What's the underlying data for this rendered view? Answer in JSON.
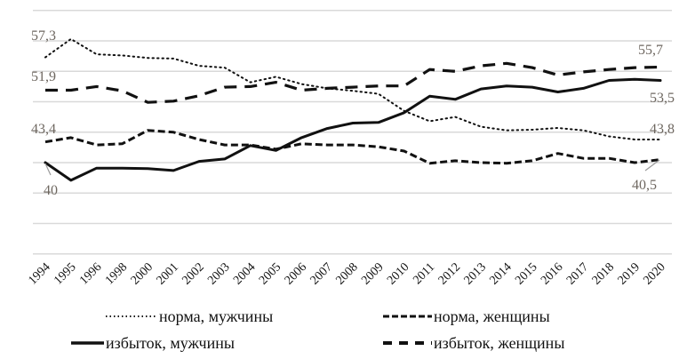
{
  "chart_data": {
    "type": "line",
    "title": "",
    "xlabel": "",
    "ylabel": "",
    "ylim": [
      25,
      65
    ],
    "y_gridlines": [
      65,
      60,
      55,
      50,
      45,
      40,
      35,
      30,
      25
    ],
    "grid": true,
    "legend_placement": "bottom",
    "categories": [
      "1994",
      "1995",
      "1996",
      "1998",
      "2000",
      "2001",
      "2002",
      "2003",
      "2004",
      "2005",
      "2006",
      "2007",
      "2008",
      "2009",
      "2010",
      "2011",
      "2012",
      "2013",
      "2014",
      "2015",
      "2016",
      "2017",
      "2018",
      "2019",
      "2020"
    ],
    "series": [
      {
        "name": "норма, мужчины",
        "style": "dotted",
        "values": [
          57.3,
          60.3,
          57.8,
          57.6,
          57.2,
          57.1,
          55.9,
          55.6,
          53.2,
          54.1,
          52.9,
          52.2,
          51.8,
          51.3,
          48.5,
          46.8,
          47.5,
          45.9,
          45.3,
          45.4,
          45.7,
          45.3,
          44.3,
          43.8,
          43.8
        ]
      },
      {
        "name": "норма, женщины",
        "style": "short-dash",
        "values": [
          43.4,
          44.1,
          42.9,
          43.1,
          45.3,
          45.0,
          43.8,
          42.9,
          42.9,
          42.2,
          43.1,
          42.9,
          42.9,
          42.6,
          41.9,
          39.9,
          40.3,
          40.0,
          39.9,
          40.3,
          41.5,
          40.7,
          40.7,
          40.0,
          40.5
        ]
      },
      {
        "name": "избыток, мужчины",
        "style": "solid",
        "values": [
          40.0,
          37.1,
          39.1,
          39.1,
          39.0,
          38.7,
          40.2,
          40.6,
          42.8,
          42.0,
          44.1,
          45.6,
          46.5,
          46.6,
          48.2,
          50.9,
          50.4,
          52.1,
          52.6,
          52.4,
          51.6,
          52.2,
          53.5,
          53.7,
          53.5
        ]
      },
      {
        "name": "избыток, женщины",
        "style": "long-dash",
        "values": [
          51.9,
          51.9,
          52.5,
          51.8,
          49.9,
          50.1,
          51.0,
          52.4,
          52.5,
          53.2,
          51.9,
          52.2,
          52.4,
          52.6,
          52.6,
          55.3,
          55.0,
          55.9,
          56.3,
          55.6,
          54.4,
          54.9,
          55.3,
          55.6,
          55.7
        ]
      }
    ],
    "annotations": [
      {
        "series": 0,
        "index": 0,
        "text": "57,3"
      },
      {
        "series": 3,
        "index": 0,
        "text": "51,9"
      },
      {
        "series": 1,
        "index": 0,
        "text": "43,4"
      },
      {
        "series": 2,
        "index": 0,
        "text": "40"
      },
      {
        "series": 3,
        "index": 24,
        "text": "55,7"
      },
      {
        "series": 2,
        "index": 24,
        "text": "53,5"
      },
      {
        "series": 0,
        "index": 24,
        "text": "43,8"
      },
      {
        "series": 1,
        "index": 24,
        "text": "40,5"
      }
    ],
    "colors": {
      "line": "#111111",
      "grid": "#d9d9d9",
      "label": "#6e6760"
    }
  }
}
